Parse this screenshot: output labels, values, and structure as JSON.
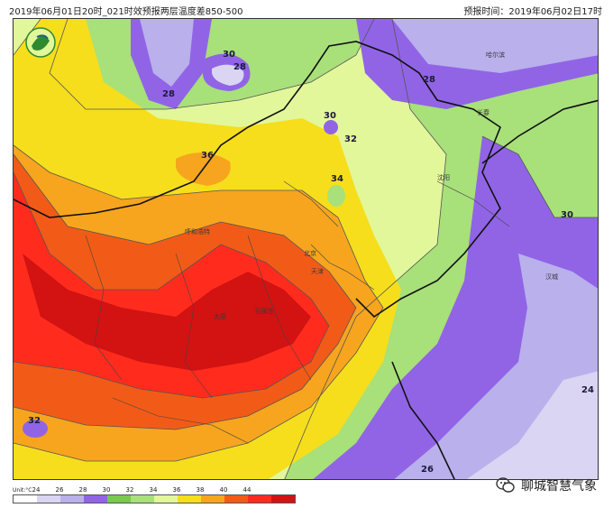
{
  "header": {
    "left_title": "2019年06月01日20时_021时效预报两层温度差850-500",
    "right_title": "预报时间：2019年06月02日17时"
  },
  "isolines": [
    "28",
    "30",
    "28",
    "30",
    "32",
    "36",
    "34",
    "28",
    "30",
    "24",
    "32",
    "26"
  ],
  "cities": [
    "呼和浩特",
    "北京",
    "天津",
    "太原",
    "石家庄",
    "长春",
    "沈阳",
    "哈尔滨",
    "汉城"
  ],
  "legend": {
    "unit": "Unit:°C",
    "ticks": [
      "24",
      "26",
      "28",
      "30",
      "32",
      "34",
      "36",
      "38",
      "40",
      "44"
    ],
    "colors": [
      "#ffffff",
      "#d9d5f2",
      "#b9b0ec",
      "#9164e6",
      "#79c94e",
      "#a8e07a",
      "#e2f79a",
      "#f6de1c",
      "#f7a51e",
      "#f25b17",
      "#ff2c1e",
      "#d31212"
    ]
  },
  "watermark": {
    "text": "聊城智慧气象",
    "icon": "wechat-icon"
  }
}
